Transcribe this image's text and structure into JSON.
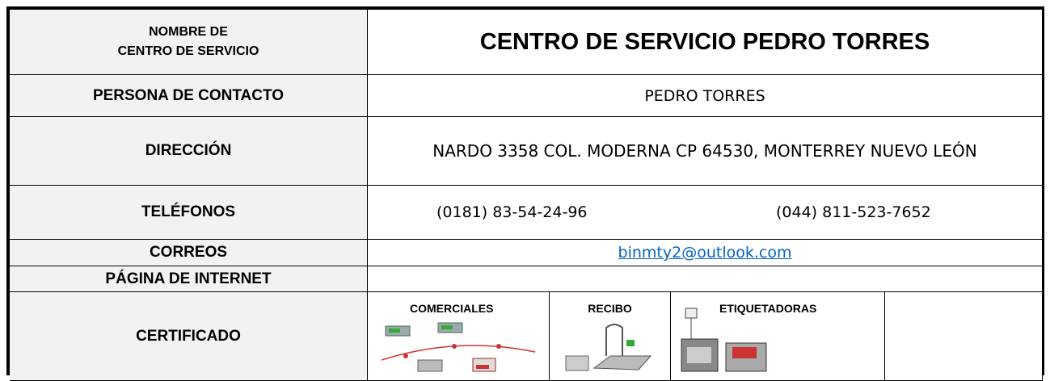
{
  "table": {
    "title_row": {
      "label_lines": [
        "NOMBRE DE",
        "CENTRO DE SERVICIO"
      ],
      "value": "CENTRO DE SERVICIO PEDRO TORRES"
    },
    "rows": [
      {
        "label": "PERSONA DE CONTACTO",
        "value": "PEDRO TORRES"
      },
      {
        "label": "DIRECCIÓN",
        "value": "NARDO 3358 COL. MODERNA CP 64530, MONTERREY NUEVO LEÓN"
      },
      {
        "label": "TELÉFONOS",
        "values": [
          "(0181) 83-54-24-96",
          "(044) 811-523-7652"
        ]
      },
      {
        "label": "CORREOS",
        "value": "binmty2@outlook.com"
      },
      {
        "label": "PÁGINA DE INTERNET"
      },
      {
        "label": "CERTIFICADO",
        "categories": [
          "COMERCIALES",
          "RECIBO",
          "ETIQUETADORAS"
        ]
      }
    ]
  }
}
